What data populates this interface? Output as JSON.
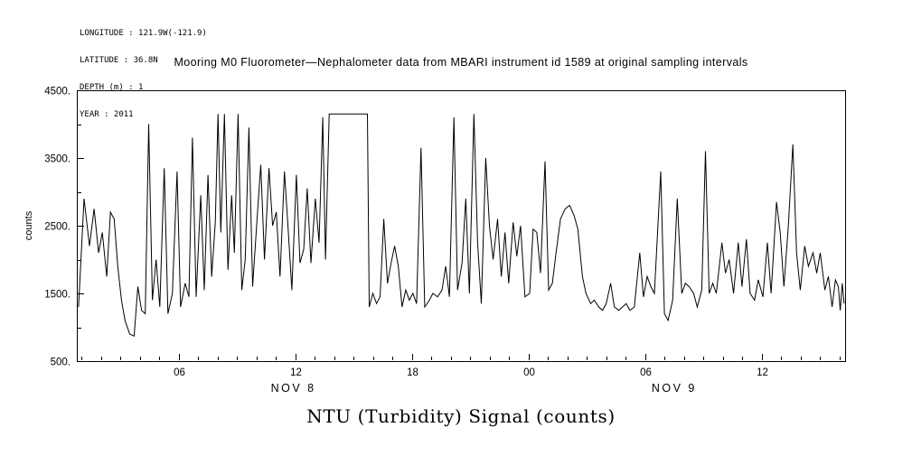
{
  "meta": {
    "longitude_line": "LONGITUDE : 121.9W(-121.9)",
    "latitude_line": "LATITUDE : 36.8N",
    "depth_line": "DEPTH (m) : 1",
    "year_line": "YEAR : 2011"
  },
  "chart_data": {
    "type": "line",
    "title": "Mooring M0 Fluorometer—Nephalometer data from MBARI instrument id 1589 at original sampling intervals",
    "xlabel": "NTU (Turbidity) Signal (counts)",
    "ylabel": "counts",
    "x_unit": "hours since 2011-11-08 00:00",
    "xlim": [
      0.75,
      40.3
    ],
    "ylim": [
      500,
      4500
    ],
    "grid": false,
    "line_color": "#000000",
    "y_minor_step": 500,
    "yticks": [
      {
        "value": 500,
        "label": "500."
      },
      {
        "value": 1500,
        "label": "1500."
      },
      {
        "value": 2500,
        "label": "2500."
      },
      {
        "value": 3500,
        "label": "3500."
      },
      {
        "value": 4500,
        "label": "4500."
      }
    ],
    "xticks": [
      {
        "hour": 6,
        "label": "06"
      },
      {
        "hour": 12,
        "label": "12"
      },
      {
        "hour": 18,
        "label": "18"
      },
      {
        "hour": 24,
        "label": "00"
      },
      {
        "hour": 30,
        "label": "06"
      },
      {
        "hour": 36,
        "label": "12"
      }
    ],
    "date_labels": [
      {
        "hour": 11.9,
        "label": "NOV 8"
      },
      {
        "hour": 31.5,
        "label": "NOV 9"
      }
    ],
    "series": [
      {
        "name": "NTU (Turbidity) Signal",
        "x": [
          0.84,
          1.12,
          1.4,
          1.64,
          1.87,
          2.06,
          2.29,
          2.48,
          2.67,
          2.86,
          3.05,
          3.23,
          3.47,
          3.7,
          3.89,
          4.08,
          4.27,
          4.45,
          4.64,
          4.83,
          5.02,
          5.25,
          5.44,
          5.67,
          5.91,
          6.09,
          6.33,
          6.52,
          6.7,
          6.89,
          7.13,
          7.31,
          7.5,
          7.69,
          7.88,
          8.02,
          8.16,
          8.35,
          8.53,
          8.72,
          8.86,
          9.05,
          9.24,
          9.42,
          9.61,
          9.8,
          10.03,
          10.22,
          10.41,
          10.64,
          10.83,
          11.02,
          11.21,
          11.44,
          11.63,
          11.82,
          12.05,
          12.24,
          12.43,
          12.61,
          12.8,
          13.03,
          13.22,
          13.41,
          13.55,
          13.74,
          14.11,
          14.58,
          15.05,
          15.52,
          15.71,
          15.8,
          15.99,
          16.18,
          16.36,
          16.55,
          16.74,
          16.93,
          17.11,
          17.3,
          17.49,
          17.68,
          17.87,
          18.05,
          18.24,
          18.47,
          18.66,
          18.9,
          19.08,
          19.32,
          19.55,
          19.74,
          19.93,
          20.16,
          20.35,
          20.58,
          20.77,
          20.96,
          21.19,
          21.38,
          21.57,
          21.8,
          21.99,
          22.18,
          22.41,
          22.6,
          22.79,
          22.98,
          23.21,
          23.4,
          23.59,
          23.82,
          24.06,
          24.24,
          24.43,
          24.62,
          24.85,
          25.04,
          25.23,
          25.42,
          25.65,
          25.89,
          26.12,
          26.35,
          26.54,
          26.78,
          26.96,
          27.2,
          27.39,
          27.62,
          27.81,
          28.0,
          28.23,
          28.42,
          28.65,
          28.84,
          29.03,
          29.22,
          29.45,
          29.73,
          29.92,
          30.11,
          30.3,
          30.48,
          30.81,
          31.0,
          31.19,
          31.42,
          31.66,
          31.89,
          32.08,
          32.27,
          32.5,
          32.69,
          32.92,
          33.11,
          33.3,
          33.49,
          33.67,
          33.96,
          34.14,
          34.33,
          34.56,
          34.8,
          34.99,
          35.22,
          35.41,
          35.64,
          35.83,
          36.07,
          36.3,
          36.49,
          36.77,
          36.96,
          37.15,
          37.38,
          37.61,
          37.8,
          37.99,
          38.22,
          38.41,
          38.65,
          38.84,
          39.02,
          39.26,
          39.44,
          39.63,
          39.8,
          39.95,
          40.05,
          40.15,
          40.25
        ],
        "y": [
          1300,
          2900,
          2200,
          2750,
          2100,
          2400,
          1750,
          2700,
          2600,
          1900,
          1400,
          1100,
          900,
          870,
          1600,
          1250,
          1200,
          4000,
          1400,
          2000,
          1300,
          3350,
          1200,
          1500,
          3300,
          1300,
          1650,
          1450,
          3800,
          1450,
          2950,
          1550,
          3250,
          1750,
          2550,
          4150,
          2400,
          4150,
          1850,
          2950,
          2100,
          4150,
          1550,
          2000,
          3950,
          1600,
          2600,
          3400,
          2000,
          3350,
          2500,
          2700,
          1750,
          3300,
          2450,
          1550,
          3250,
          1950,
          2150,
          3050,
          1950,
          2900,
          2250,
          4100,
          2000,
          4150,
          4150,
          4150,
          4150,
          4150,
          4150,
          1300,
          1500,
          1350,
          1450,
          2600,
          1650,
          1950,
          2200,
          1900,
          1300,
          1550,
          1400,
          1500,
          1350,
          3650,
          1300,
          1400,
          1500,
          1450,
          1550,
          1900,
          1450,
          4100,
          1550,
          1950,
          2900,
          1500,
          4150,
          2250,
          1350,
          3500,
          2500,
          2000,
          2600,
          1750,
          2400,
          1650,
          2550,
          2050,
          2500,
          1450,
          1500,
          2450,
          2400,
          1800,
          3450,
          1550,
          1650,
          2100,
          2600,
          2750,
          2800,
          2650,
          2450,
          1750,
          1500,
          1350,
          1400,
          1300,
          1250,
          1350,
          1650,
          1300,
          1250,
          1300,
          1350,
          1250,
          1300,
          2100,
          1450,
          1750,
          1600,
          1500,
          3300,
          1200,
          1100,
          1400,
          2900,
          1500,
          1650,
          1600,
          1500,
          1300,
          1550,
          3600,
          1500,
          1650,
          1500,
          2250,
          1800,
          2000,
          1500,
          2250,
          1600,
          2300,
          1500,
          1400,
          1700,
          1450,
          2250,
          1500,
          2850,
          2400,
          1600,
          2500,
          3700,
          2100,
          1550,
          2200,
          1900,
          2100,
          1800,
          2100,
          1550,
          1750,
          1300,
          1700,
          1600,
          1250,
          1650,
          1350
        ]
      }
    ]
  }
}
